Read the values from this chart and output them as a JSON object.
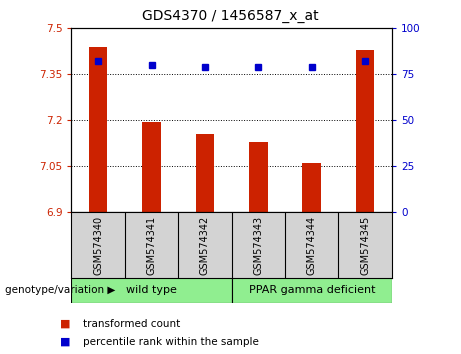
{
  "title": "GDS4370 / 1456587_x_at",
  "samples": [
    "GSM574340",
    "GSM574341",
    "GSM574342",
    "GSM574343",
    "GSM574344",
    "GSM574345"
  ],
  "bar_values": [
    7.44,
    7.195,
    7.155,
    7.13,
    7.06,
    7.43
  ],
  "percentile_values": [
    82,
    80,
    79,
    79,
    79,
    82
  ],
  "ylim_left": [
    6.9,
    7.5
  ],
  "ylim_right": [
    0,
    100
  ],
  "yticks_left": [
    6.9,
    7.05,
    7.2,
    7.35,
    7.5
  ],
  "yticks_right": [
    0,
    25,
    50,
    75,
    100
  ],
  "bar_color": "#cc2200",
  "dot_color": "#0000cc",
  "bar_width": 0.35,
  "group1_label": "wild type",
  "group2_label": "PPAR gamma deficient",
  "group1_color": "#90ee90",
  "group2_color": "#90ee90",
  "genotype_label": "genotype/variation",
  "legend_bar_label": "transformed count",
  "legend_dot_label": "percentile rank within the sample",
  "grid_color": "black",
  "bg_color": "#d3d3d3",
  "title_fontsize": 10,
  "axis_color_left": "#cc2200",
  "axis_color_right": "#0000cc",
  "tick_fontsize": 7.5,
  "sample_fontsize": 7,
  "legend_fontsize": 7.5
}
